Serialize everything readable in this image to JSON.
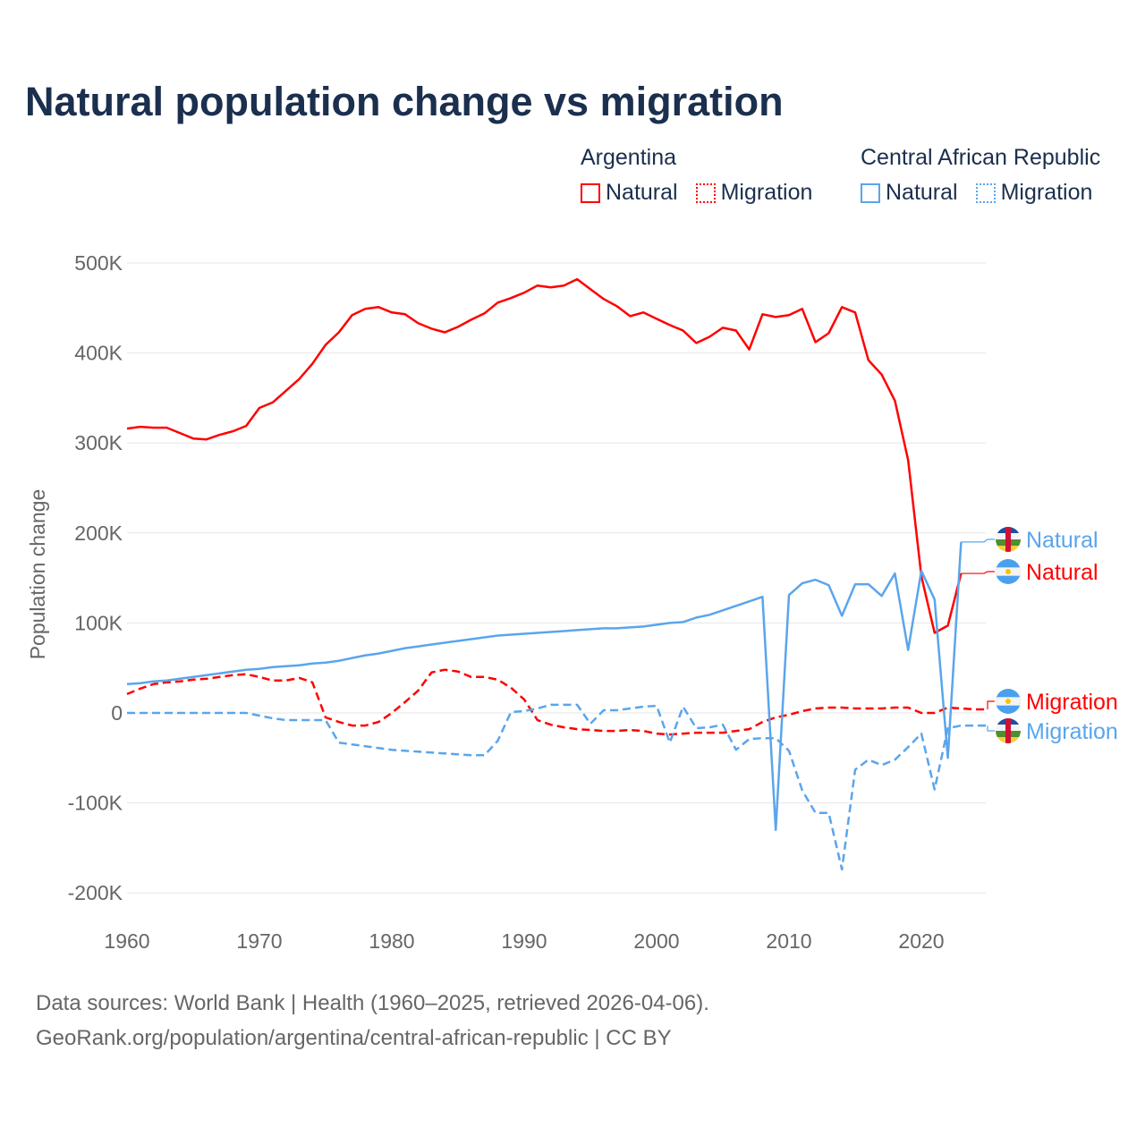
{
  "title": "Natural population change vs migration",
  "legend": [
    {
      "country": "Argentina",
      "color": "#ff0000",
      "items": [
        "Natural",
        "Migration"
      ]
    },
    {
      "country": "Central African Republic",
      "color": "#5aa5ec",
      "items": [
        "Natural",
        "Migration"
      ]
    }
  ],
  "footer": {
    "line1": "Data sources: World Bank | Health (1960–2025, retrieved 2026-04-06).",
    "line2": "GeoRank.org/population/argentina/central-african-republic | CC BY"
  },
  "chart_data": {
    "type": "line",
    "title": "Natural population change vs migration",
    "ylabel": "Population change",
    "xlabel": "",
    "xlim": [
      1960,
      2025
    ],
    "ylim": [
      -200000,
      500000
    ],
    "xticks": [
      1960,
      1970,
      1980,
      1990,
      2000,
      2010,
      2020
    ],
    "yticks": [
      {
        "v": 500000,
        "label": "500K"
      },
      {
        "v": 400000,
        "label": "400K"
      },
      {
        "v": 300000,
        "label": "300K"
      },
      {
        "v": 200000,
        "label": "200K"
      },
      {
        "v": 100000,
        "label": "100K"
      },
      {
        "v": 0,
        "label": "0"
      },
      {
        "v": -100000,
        "label": "-100K"
      },
      {
        "v": -200000,
        "label": "-200K"
      }
    ],
    "grid": true,
    "units": "thousands",
    "series": [
      {
        "name": "Natural",
        "country": "Argentina",
        "color": "#ff0000",
        "dash": false,
        "flag": "argentina-flag-icon",
        "start": 1960,
        "values": [
          316,
          318,
          317,
          317,
          311,
          305,
          304,
          309,
          313,
          319,
          339,
          345,
          358,
          371,
          388,
          409,
          423,
          442,
          449,
          451,
          445,
          443,
          433,
          427,
          423,
          429,
          437,
          444,
          456,
          461,
          467,
          475,
          473,
          475,
          482,
          471,
          460,
          452,
          441,
          445,
          438,
          431,
          425,
          411,
          418,
          428,
          425,
          404,
          443,
          440,
          442,
          449,
          412,
          422,
          451,
          445,
          392,
          376,
          347,
          281,
          152,
          89,
          97,
          155
        ]
      },
      {
        "name": "Migration",
        "country": "Argentina",
        "color": "#ff0000",
        "dash": true,
        "flag": "argentina-flag-icon",
        "start": 1960,
        "values": [
          21,
          27,
          32,
          34,
          35,
          37,
          38,
          40,
          42,
          43,
          40,
          36,
          36,
          39,
          34,
          -5,
          -10,
          -14,
          -14,
          -10,
          0,
          12,
          25,
          45,
          48,
          46,
          40,
          40,
          37,
          28,
          15,
          -8,
          -13,
          -16,
          -18,
          -19,
          -20,
          -20,
          -19,
          -20,
          -23,
          -24,
          -23,
          -22,
          -22,
          -22,
          -20,
          -18,
          -10,
          -5,
          -2,
          2,
          5,
          6,
          6,
          5,
          5,
          5,
          6,
          6,
          0,
          0,
          6,
          5,
          4,
          4
        ]
      },
      {
        "name": "Natural",
        "country": "Central African Republic",
        "color": "#5aa5ec",
        "dash": false,
        "flag": "car-flag-icon",
        "start": 1960,
        "values": [
          32,
          33,
          35,
          36,
          38,
          40,
          42,
          44,
          46,
          48,
          49,
          51,
          52,
          53,
          55,
          56,
          58,
          61,
          64,
          66,
          69,
          72,
          74,
          76,
          78,
          80,
          82,
          84,
          86,
          87,
          88,
          89,
          90,
          91,
          92,
          93,
          94,
          94,
          95,
          96,
          98,
          100,
          101,
          106,
          109,
          114,
          119,
          124,
          129,
          -130,
          131,
          144,
          148,
          142,
          108,
          143,
          143,
          130,
          155,
          70,
          158,
          126,
          -50,
          190
        ]
      },
      {
        "name": "Migration",
        "country": "Central African Republic",
        "color": "#5aa5ec",
        "dash": true,
        "flag": "car-flag-icon",
        "start": 1960,
        "values": [
          0,
          0,
          0,
          0,
          0,
          0,
          0,
          0,
          0,
          0,
          -3,
          -6,
          -8,
          -8,
          -8,
          -8,
          -33,
          -35,
          -37,
          -39,
          -41,
          -42,
          -43,
          -44,
          -45,
          -46,
          -47,
          -47,
          -31,
          1,
          2,
          5,
          9,
          9,
          9,
          -12,
          3,
          3,
          5,
          7,
          8,
          -33,
          7,
          -17,
          -16,
          -13,
          -41,
          -29,
          -28,
          -28,
          -42,
          -86,
          -111,
          -111,
          -174,
          -63,
          -52,
          -58,
          -52,
          -38,
          -23,
          -85,
          -17,
          -14,
          -14,
          -14
        ]
      }
    ]
  }
}
